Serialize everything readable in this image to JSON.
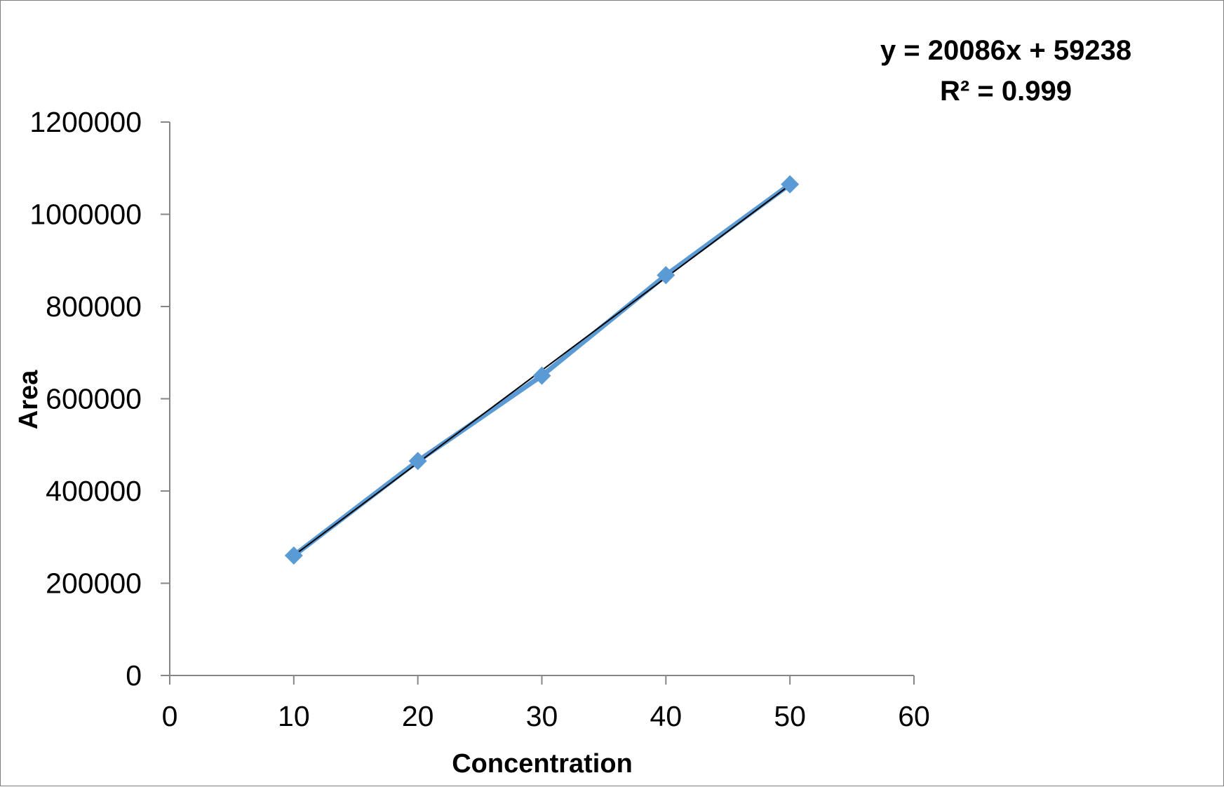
{
  "chart_data": {
    "type": "scatter",
    "title": "",
    "xlabel": "Concentration",
    "ylabel": "Area",
    "xlim": [
      0,
      60
    ],
    "ylim": [
      0,
      1200000
    ],
    "x_ticks": [
      "0",
      "10",
      "20",
      "30",
      "40",
      "50",
      "60"
    ],
    "y_ticks": [
      "0",
      "200000",
      "400000",
      "600000",
      "800000",
      "1000000",
      "1200000"
    ],
    "grid": false,
    "legend": "none",
    "series": [
      {
        "marker": "diamond",
        "connected": true,
        "color": "#5b9bd5",
        "x": [
          10,
          20,
          30,
          40,
          50
        ],
        "y": [
          260000,
          465000,
          650000,
          868000,
          1065000
        ]
      }
    ],
    "trendline": {
      "type": "linear",
      "slope": 20086,
      "intercept": 59238,
      "x_range": [
        10,
        50
      ],
      "color": "#000000",
      "equation": "y = 20086x + 59238",
      "r_squared": "R² = 0.999"
    }
  }
}
